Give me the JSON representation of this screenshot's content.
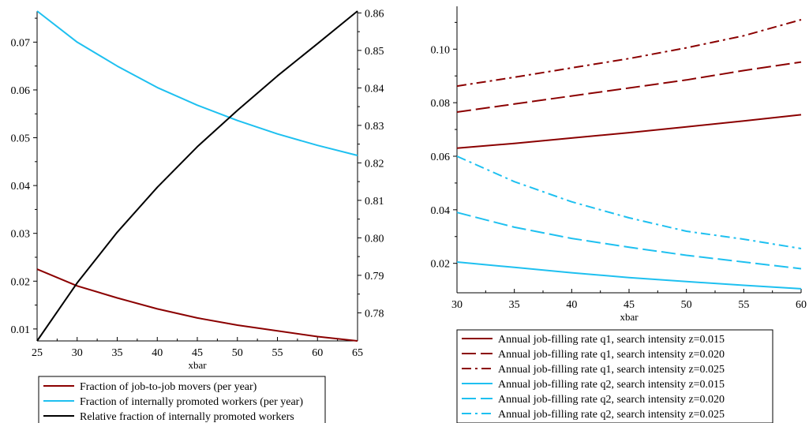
{
  "chart_data": [
    {
      "type": "line",
      "xlabel": "xbar",
      "xlim": [
        25,
        65
      ],
      "xticks": [
        25,
        30,
        35,
        40,
        45,
        50,
        55,
        60,
        65
      ],
      "left_axis": {
        "ylim": [
          0.0075,
          0.0765
        ],
        "ticks": [
          0.01,
          0.02,
          0.03,
          0.04,
          0.05,
          0.06,
          0.07
        ],
        "tick_labels": [
          "0.01",
          "0.02",
          "0.03",
          "0.04",
          "0.05",
          "0.06",
          "0.07"
        ]
      },
      "right_axis": {
        "ylim": [
          0.7725,
          0.8605
        ],
        "ticks": [
          0.78,
          0.79,
          0.8,
          0.81,
          0.82,
          0.83,
          0.84,
          0.85,
          0.86
        ],
        "tick_labels": [
          "0.78",
          "0.79",
          "0.80",
          "0.81",
          "0.82",
          "0.83",
          "0.84",
          "0.85",
          "0.86"
        ]
      },
      "x": [
        25,
        30,
        35,
        40,
        45,
        50,
        55,
        60,
        65
      ],
      "series": [
        {
          "name": "Fraction of job-to-job movers (per year)",
          "axis": "left",
          "color": "#8b0000",
          "dash": "solid",
          "values": [
            0.0225,
            0.019,
            0.0165,
            0.0142,
            0.0123,
            0.0108,
            0.0096,
            0.0084,
            0.0075
          ]
        },
        {
          "name": "Fraction of internally promoted workers (per year)",
          "axis": "left",
          "color": "#1ec0f0",
          "dash": "solid",
          "values": [
            0.0765,
            0.07,
            0.065,
            0.0605,
            0.0568,
            0.0536,
            0.0508,
            0.0484,
            0.0463
          ]
        },
        {
          "name": "Relative fraction of internally promoted workers",
          "axis": "right",
          "color": "#000000",
          "dash": "solid",
          "values": [
            0.7725,
            0.788,
            0.8015,
            0.8135,
            0.8243,
            0.834,
            0.8432,
            0.8518,
            0.8605
          ]
        }
      ],
      "legend": "bottom"
    },
    {
      "type": "line",
      "xlabel": "xbar",
      "xlim": [
        30,
        60
      ],
      "xticks": [
        30,
        35,
        40,
        45,
        50,
        55,
        60
      ],
      "ylim": [
        0.009,
        0.116
      ],
      "yticks": [
        0.02,
        0.04,
        0.06,
        0.08,
        0.1
      ],
      "ytick_labels": [
        "0.02",
        "0.04",
        "0.06",
        "0.08",
        "0.10"
      ],
      "x": [
        30,
        35,
        40,
        45,
        50,
        55,
        60
      ],
      "series": [
        {
          "name": "Annual job-filling rate q1, search intensity z=0.015",
          "color": "#8b0000",
          "dash": "solid",
          "values": [
            0.063,
            0.0648,
            0.0668,
            0.0688,
            0.071,
            0.0732,
            0.0755
          ]
        },
        {
          "name": "Annual job-filling rate q1, search intensity z=0.020",
          "color": "#8b0000",
          "dash": "long",
          "values": [
            0.0765,
            0.0795,
            0.0825,
            0.0855,
            0.0885,
            0.092,
            0.0952
          ]
        },
        {
          "name": "Annual job-filling rate q1, search intensity z=0.025",
          "color": "#8b0000",
          "dash": "dashdot",
          "values": [
            0.0862,
            0.0895,
            0.093,
            0.0965,
            0.1005,
            0.105,
            0.111
          ]
        },
        {
          "name": "Annual job-filling rate q2, search intensity z=0.015",
          "color": "#1ec0f0",
          "dash": "solid",
          "values": [
            0.0205,
            0.0185,
            0.0165,
            0.0147,
            0.0132,
            0.0118,
            0.0105
          ]
        },
        {
          "name": "Annual job-filling rate q2, search intensity z=0.020",
          "color": "#1ec0f0",
          "dash": "long",
          "values": [
            0.039,
            0.0335,
            0.0293,
            0.026,
            0.023,
            0.0205,
            0.018
          ]
        },
        {
          "name": "Annual job-filling rate q2, search intensity z=0.025",
          "color": "#1ec0f0",
          "dash": "dashdot",
          "values": [
            0.06,
            0.0505,
            0.043,
            0.037,
            0.032,
            0.029,
            0.0255
          ]
        }
      ],
      "legend": "bottom"
    }
  ]
}
